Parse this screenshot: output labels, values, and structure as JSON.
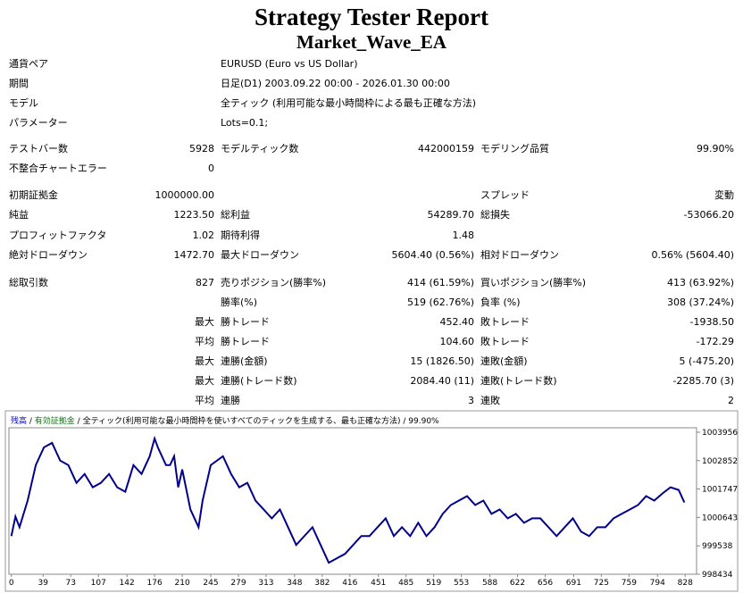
{
  "header": {
    "title": "Strategy Tester Report",
    "subtitle": "Market_Wave_EA"
  },
  "table": {
    "rows": [
      [
        "通貨ペア",
        null,
        "EURUSD (Euro vs US Dollar)",
        null,
        null,
        null
      ],
      [
        "期間",
        null,
        "日足(D1) 2003.09.22 00:00 - 2026.01.30 00:00",
        null,
        null,
        null
      ],
      [
        "モデル",
        null,
        "全ティック (利用可能な最小時間枠による最も正確な方法)",
        null,
        null,
        null
      ],
      [
        "パラメーター",
        null,
        "Lots=0.1;",
        null,
        null,
        null
      ],
      [
        "テストバー数",
        "5928",
        "モデルティック数",
        "442000159",
        "モデリング品質",
        "99.90%"
      ],
      [
        "不整合チャートエラー",
        "0",
        null,
        null,
        null,
        null
      ],
      [
        "初期証拠金",
        "1000000.00",
        null,
        null,
        "スプレッド",
        "変動"
      ],
      [
        "純益",
        "1223.50",
        "総利益",
        "54289.70",
        "総損失",
        "-53066.20"
      ],
      [
        "プロフィットファクタ",
        "1.02",
        "期待利得",
        "1.48",
        null,
        null
      ],
      [
        "絶対ドローダウン",
        "1472.70",
        "最大ドローダウン",
        "5604.40 (0.56%)",
        "相対ドローダウン",
        "0.56% (5604.40)"
      ],
      [
        "総取引数",
        "827",
        "売りポジション(勝率%)",
        "414 (61.59%)",
        "買いポジション(勝率%)",
        "413 (63.92%)"
      ],
      [
        null,
        null,
        "勝率(%)",
        "519 (62.76%)",
        "負率 (%)",
        "308 (37.24%)"
      ],
      [
        null,
        "最大",
        "勝トレード",
        "452.40",
        "敗トレード",
        "-1938.50"
      ],
      [
        null,
        "平均",
        "勝トレード",
        "104.60",
        "敗トレード",
        "-172.29"
      ],
      [
        null,
        "最大",
        "連勝(金額)",
        "15 (1826.50)",
        "連敗(金額)",
        "5 (-475.20)"
      ],
      [
        null,
        "最大",
        "連勝(トレード数)",
        "2084.40 (11)",
        "連敗(トレード数)",
        "-2285.70 (3)"
      ],
      [
        null,
        "平均",
        "連勝",
        "3",
        "連敗",
        "2"
      ]
    ]
  },
  "chart_data": {
    "type": "line",
    "legend": {
      "items": [
        {
          "text": "残高",
          "color": "#0000cc"
        },
        {
          "text": "有効証拠金",
          "color": "#008000"
        },
        {
          "text": "全ティック(利用可能な最小時間枠を使いすべてのティックを生成する、最も正確な方法)",
          "color": "#000000"
        },
        {
          "text": "99.90%",
          "color": "#000000"
        }
      ],
      "separator": "/"
    },
    "x": [
      0,
      5,
      10,
      20,
      30,
      40,
      50,
      55,
      60,
      70,
      80,
      90,
      100,
      110,
      120,
      130,
      140,
      150,
      160,
      170,
      176,
      180,
      190,
      195,
      200,
      205,
      210,
      220,
      230,
      235,
      245,
      260,
      270,
      280,
      290,
      300,
      310,
      320,
      330,
      340,
      350,
      360,
      370,
      380,
      390,
      400,
      410,
      420,
      430,
      440,
      450,
      460,
      470,
      480,
      490,
      500,
      510,
      520,
      530,
      540,
      550,
      560,
      570,
      580,
      590,
      600,
      610,
      620,
      630,
      640,
      650,
      660,
      670,
      680,
      690,
      700,
      710,
      720,
      730,
      740,
      750,
      760,
      770,
      780,
      790,
      800,
      810,
      820,
      827
    ],
    "series": [
      {
        "name": "残高",
        "color": "#00008b",
        "values": [
          999918,
          1000676,
          1000262,
          1001297,
          1002677,
          1003367,
          1003540,
          1003195,
          1002850,
          1002677,
          1001987,
          1002332,
          1001815,
          1001987,
          1002332,
          1001815,
          1001642,
          1002677,
          1002332,
          1003022,
          1003712,
          1003367,
          1002677,
          1002677,
          1003022,
          1001815,
          1002505,
          1000952,
          1000262,
          1001297,
          1002677,
          1003022,
          1002332,
          1001815,
          1001987,
          1001297,
          1000952,
          1000607,
          1000952,
          1000262,
          999572,
          999918,
          1000262,
          999572,
          998882,
          999055,
          999227,
          999572,
          999918,
          999918,
          1000262,
          1000607,
          999918,
          1000262,
          999918,
          1000435,
          999918,
          1000262,
          1000780,
          1001125,
          1001297,
          1001470,
          1001125,
          1001297,
          1000780,
          1000952,
          1000607,
          1000780,
          1000435,
          1000607,
          1000607,
          1000262,
          999918,
          1000262,
          1000607,
          1000090,
          999918,
          1000262,
          1000262,
          1000607,
          1000780,
          1000952,
          1001125,
          1001470,
          1001297,
          1001573,
          1001815,
          1001711,
          1001228
        ]
      }
    ],
    "xlim": [
      -3,
      842
    ],
    "xticks": [
      0,
      39,
      73,
      107,
      142,
      176,
      210,
      245,
      279,
      313,
      348,
      382,
      416,
      451,
      485,
      519,
      553,
      588,
      622,
      656,
      691,
      725,
      759,
      794,
      828
    ],
    "ylim": [
      998434,
      1004128
    ],
    "yticks": [
      998434,
      999538,
      1000643,
      1001747,
      1002852,
      1003956
    ],
    "grid": false
  }
}
